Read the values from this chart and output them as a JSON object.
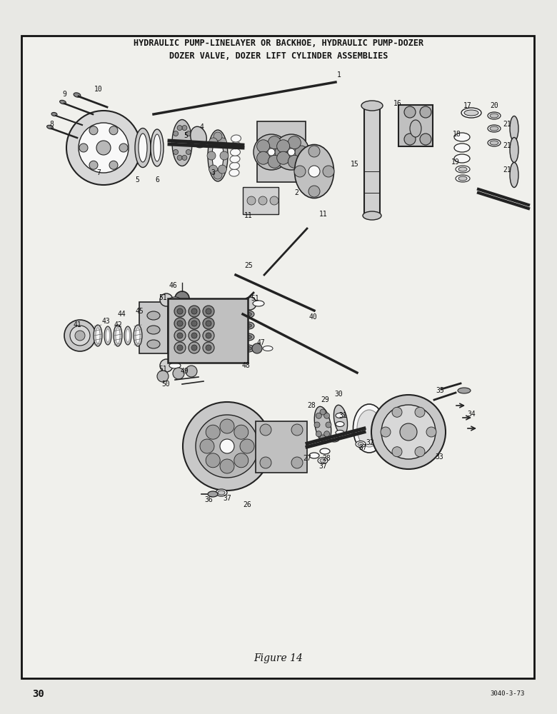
{
  "title_line1": "HYDRAULIC PUMP-LINELAYER OR BACKHOE, HYDRAULIC PUMP-DOZER",
  "title_line2": "DOZER VALVE, DOZER LIFT CYLINDER ASSEMBLIES",
  "figure_label": "Figure 14",
  "page_number": "30",
  "doc_number": "3040-3-73",
  "bg_color": "#e8e8e4",
  "page_bg": "#f0f0ec",
  "border_color": "#111111",
  "title_fontsize": 8.5,
  "figure_fontsize": 10,
  "page_fontsize": 10,
  "doc_fontsize": 6.5,
  "label_fontsize": 7.0
}
